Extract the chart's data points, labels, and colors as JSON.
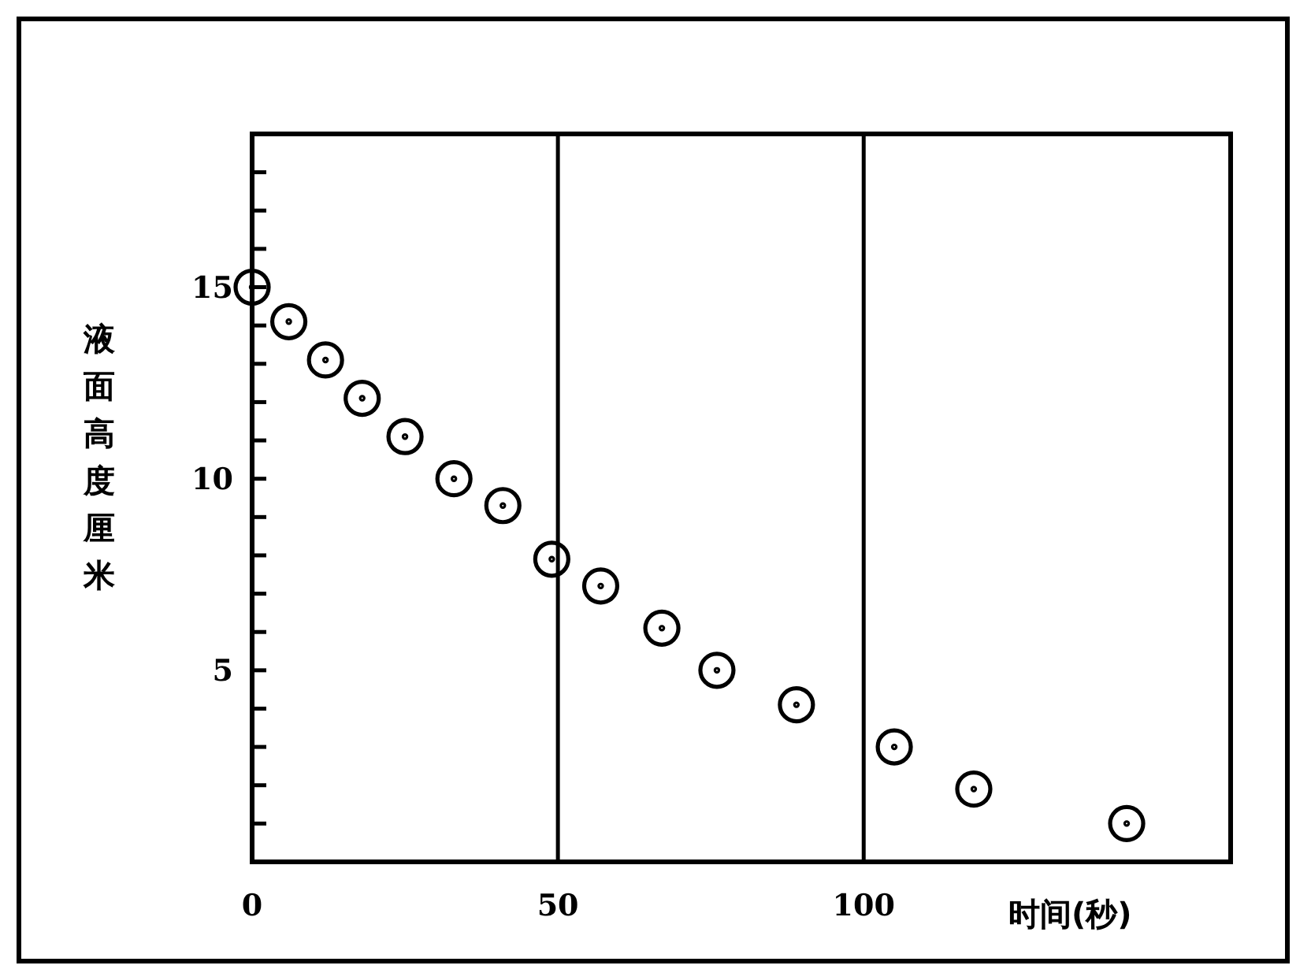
{
  "chart_data": {
    "type": "scatter",
    "xlabel": "时间(秒)",
    "ylabel": "液面高度厘米",
    "x": [
      0,
      6,
      12,
      18,
      25,
      33,
      41,
      49,
      57,
      67,
      76,
      89,
      105,
      118,
      143
    ],
    "values": [
      15,
      14.1,
      13.1,
      12.1,
      11.1,
      10,
      9.3,
      7.9,
      7.2,
      6.1,
      5,
      4.1,
      3,
      1.9,
      1
    ],
    "color": "#000000",
    "marker": "circle",
    "xlim": [
      0,
      160
    ],
    "xticks": [
      0,
      50,
      100
    ],
    "ylim": [
      0,
      19
    ],
    "yticks": [
      {
        "value": 1,
        "label": null
      },
      {
        "value": 2,
        "label": null
      },
      {
        "value": 3,
        "label": null
      },
      {
        "value": 4,
        "label": null
      },
      5,
      {
        "value": 6,
        "label": null
      },
      {
        "value": 7,
        "label": null
      },
      {
        "value": 8,
        "label": null
      },
      {
        "value": 9,
        "label": null
      },
      10,
      {
        "value": 11,
        "label": null
      },
      {
        "value": 12,
        "label": null
      },
      {
        "value": 13,
        "label": null
      },
      {
        "value": 14,
        "label": null
      },
      15,
      {
        "value": 16,
        "label": null
      },
      {
        "value": 17,
        "label": null
      },
      {
        "value": 18,
        "label": null
      }
    ],
    "grid": "x"
  }
}
